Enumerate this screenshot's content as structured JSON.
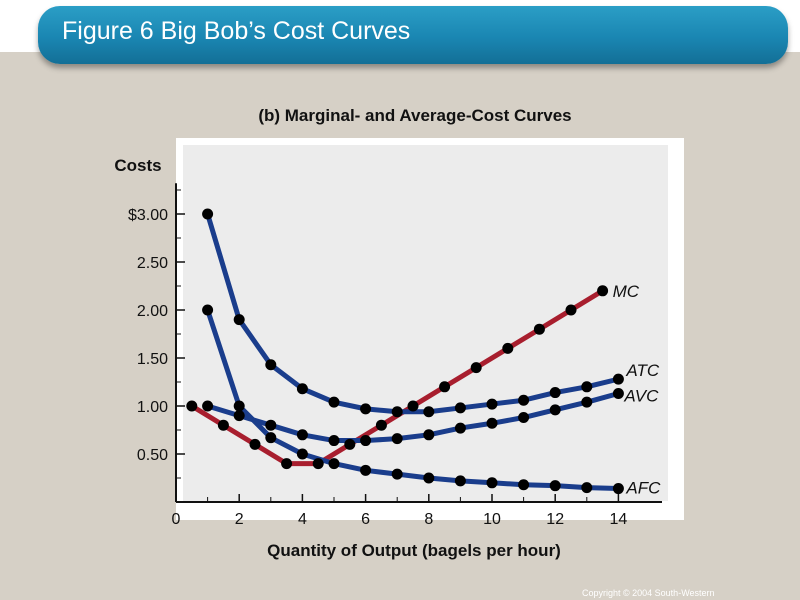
{
  "header": {
    "title": "Figure 6 Big Bob’s Cost Curves"
  },
  "footer": {
    "copyright": "Copyright © 2004 South-Western"
  },
  "chart_data": {
    "type": "line",
    "title": "(b) Marginal- and Average-Cost Curves",
    "ylabel": "Costs",
    "xlabel": "Quantity of Output (bagels per hour)",
    "xlim": [
      0,
      15
    ],
    "ylim": [
      0,
      3.3
    ],
    "x_ticks": [
      0,
      2,
      4,
      6,
      8,
      10,
      12,
      14
    ],
    "x_tick_labels": [
      "0",
      "2",
      "4",
      "6",
      "8",
      "10",
      "12",
      "14"
    ],
    "y_ticks": [
      0.5,
      1.0,
      1.5,
      2.0,
      2.5,
      3.0
    ],
    "y_tick_labels": [
      "0.50",
      "1.00",
      "1.50",
      "2.00",
      "2.50",
      "$3.00"
    ],
    "grid": false,
    "legend": "curve labels at right end",
    "series": [
      {
        "name": "MC",
        "color": "#a81e2e",
        "x": [
          0.5,
          1.5,
          2.5,
          3.5,
          4.5,
          5.5,
          6.5,
          7.5,
          8.5,
          9.5,
          10.5,
          11.5,
          12.5,
          13.5
        ],
        "y": [
          1.0,
          0.8,
          0.6,
          0.4,
          0.4,
          0.6,
          0.8,
          1.0,
          1.2,
          1.4,
          1.6,
          1.8,
          2.0,
          2.2
        ]
      },
      {
        "name": "ATC",
        "color": "#1a3d8c",
        "x": [
          1,
          2,
          3,
          4,
          5,
          6,
          7,
          8,
          9,
          10,
          11,
          12,
          13,
          14
        ],
        "y": [
          3.0,
          1.9,
          1.43,
          1.18,
          1.04,
          0.97,
          0.94,
          0.94,
          0.98,
          1.02,
          1.06,
          1.14,
          1.2,
          1.28
        ]
      },
      {
        "name": "AVC",
        "color": "#1a3d8c",
        "x": [
          1,
          2,
          3,
          4,
          5,
          6,
          7,
          8,
          9,
          10,
          11,
          12,
          13,
          14
        ],
        "y": [
          1.0,
          0.9,
          0.8,
          0.7,
          0.64,
          0.64,
          0.66,
          0.7,
          0.77,
          0.82,
          0.88,
          0.96,
          1.04,
          1.13
        ]
      },
      {
        "name": "AFC",
        "color": "#1a3d8c",
        "x": [
          1,
          2,
          3,
          4,
          5,
          6,
          7,
          8,
          9,
          10,
          11,
          12,
          13,
          14
        ],
        "y": [
          2.0,
          1.0,
          0.67,
          0.5,
          0.4,
          0.33,
          0.29,
          0.25,
          0.22,
          0.2,
          0.18,
          0.17,
          0.15,
          0.14
        ]
      }
    ]
  }
}
